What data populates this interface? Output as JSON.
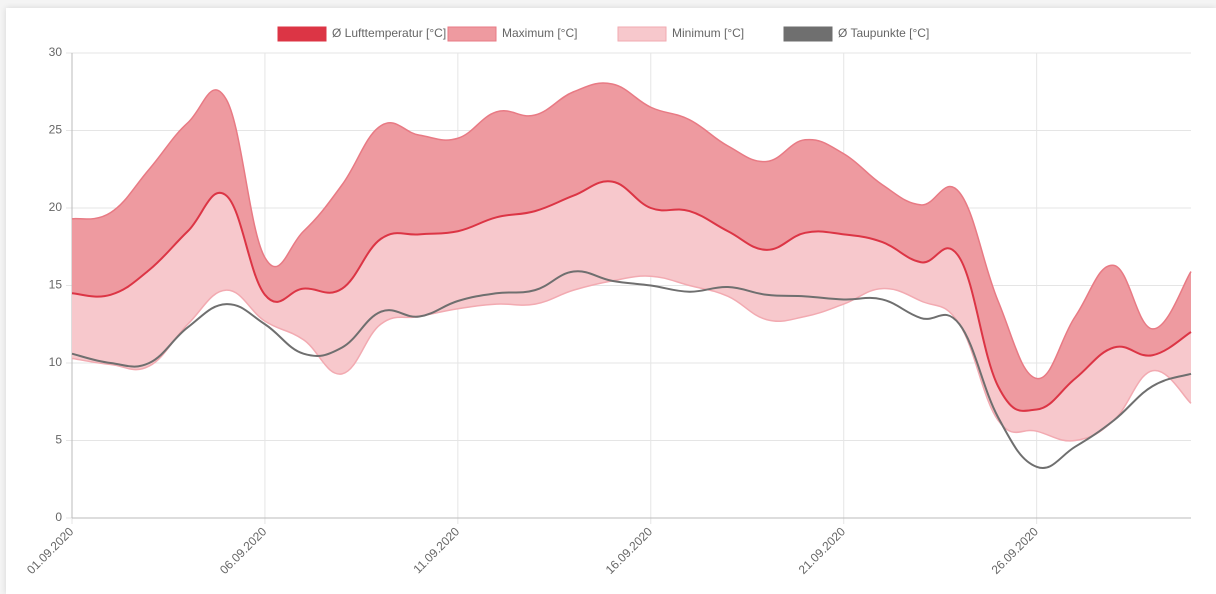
{
  "chart_data": {
    "type": "line",
    "categories": [
      "01.09.2020",
      null,
      null,
      null,
      null,
      "06.09.2020",
      null,
      null,
      null,
      null,
      "11.09.2020",
      null,
      null,
      null,
      null,
      "16.09.2020",
      null,
      null,
      null,
      null,
      "21.09.2020",
      null,
      null,
      null,
      null,
      "26.09.2020",
      null,
      null,
      null,
      null
    ],
    "series": [
      {
        "name": "Ø Lufttemperatur [°C]",
        "color": "#dc3545",
        "values": [
          14.5,
          14.4,
          16,
          18.5,
          20.8,
          14.4,
          14.8,
          14.8,
          18,
          18.3,
          18.5,
          19.4,
          19.8,
          20.8,
          21.7,
          20,
          19.8,
          18.5,
          17.3,
          18.4,
          18.3,
          17.8,
          16.5,
          16.8,
          8.5,
          7,
          9,
          11,
          10.5,
          12
        ]
      },
      {
        "name": "Maximum [°C]",
        "color": "#ee9aa0",
        "values": [
          19.3,
          19.7,
          22.5,
          25.5,
          27,
          16.8,
          18.5,
          21.5,
          25.3,
          24.7,
          24.5,
          26.2,
          26,
          27.5,
          28,
          26.5,
          25.7,
          24,
          23,
          24.4,
          23.5,
          21.5,
          20.2,
          21,
          14,
          9,
          13,
          16.3,
          12.2,
          15.9
        ]
      },
      {
        "name": "Minimum [°C]",
        "color": "#f7c8cc",
        "values": [
          10.3,
          9.9,
          9.8,
          12.5,
          14.7,
          12.7,
          11.5,
          9.3,
          12.5,
          13,
          13.5,
          13.8,
          13.8,
          14.7,
          15.3,
          15.6,
          15,
          14.3,
          12.8,
          13,
          13.8,
          14.8,
          14,
          12.5,
          6.3,
          5.6,
          5,
          6.3,
          9.5,
          7.4
        ]
      },
      {
        "name": "Ø Taupunkte [°C]",
        "color": "#6f6f6f",
        "values": [
          10.6,
          10,
          10,
          12.3,
          13.8,
          12.5,
          10.6,
          11,
          13.3,
          13,
          14,
          14.5,
          14.7,
          15.9,
          15.3,
          15,
          14.6,
          14.9,
          14.4,
          14.3,
          14.1,
          14.1,
          12.9,
          12.5,
          6.5,
          3.3,
          4.6,
          6.3,
          8.5,
          9.3
        ]
      }
    ],
    "ylim": [
      0,
      30
    ],
    "yticks": [
      0,
      5,
      10,
      15,
      20,
      25,
      30
    ],
    "grid": true,
    "legend": "top"
  }
}
